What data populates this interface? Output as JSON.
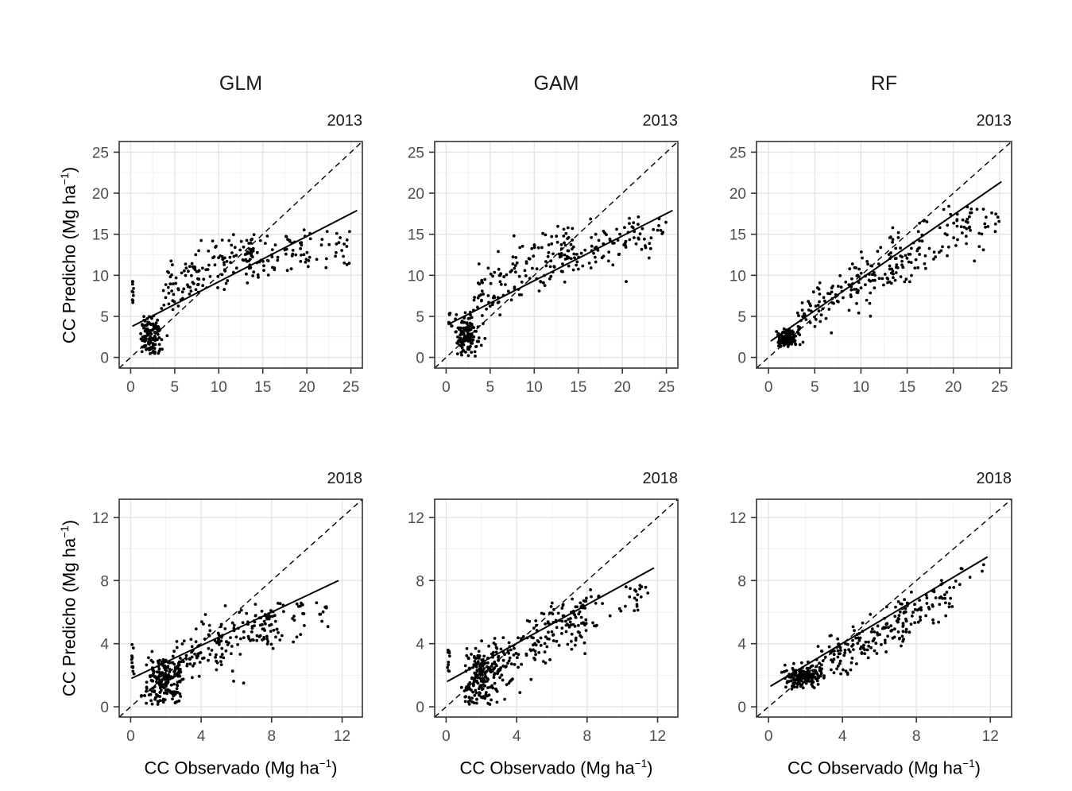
{
  "figure": {
    "column_titles": [
      "GLM",
      "GAM",
      "RF"
    ],
    "row_year_labels": [
      "2013",
      "2018"
    ],
    "x_label": {
      "pre": "CC Observado (Mg ha",
      "sup": "−1",
      "post": ")"
    },
    "y_label": {
      "pre": "CC Predicho (Mg ha",
      "sup": "−1",
      "post": ")"
    },
    "colors": {
      "text_tick": "#4d4d4d",
      "text_title": "#1a1a1a",
      "panel_border": "#333333",
      "grid_major": "#e3e3e3",
      "grid_minor": "#f1f1f1",
      "point": "#000000",
      "line": "#000000"
    }
  },
  "chart_data": {
    "type": "scatter",
    "title": "",
    "facet_columns": [
      "GLM",
      "GAM",
      "RF"
    ],
    "facet_rows": [
      "2013",
      "2018"
    ],
    "x_axis_label": "CC Observado (Mg ha−1)",
    "y_axis_label": "CC Predicho (Mg ha−1)",
    "grid": true,
    "legend": "none",
    "rows": [
      {
        "year": "2013",
        "ticks": [
          0,
          5,
          10,
          15,
          20,
          25
        ],
        "minor_ticks": [
          2.5,
          7.5,
          12.5,
          17.5,
          22.5
        ],
        "domain": [
          -1.3,
          26.3
        ]
      },
      {
        "year": "2018",
        "ticks": [
          0,
          4,
          8,
          12
        ],
        "minor_ticks": [
          2,
          6,
          10
        ],
        "domain": [
          -0.65,
          13.15
        ]
      }
    ],
    "panels": [
      {
        "model": "GLM",
        "year": "2013",
        "row": 0,
        "col": 0,
        "seed": 101,
        "identity_line": true,
        "regression": {
          "x": [
            0.2,
            25.7
          ],
          "y": [
            3.8,
            17.9
          ]
        },
        "point_groups": [
          {
            "n": 130,
            "x": {
              "dist": "norm",
              "mean": 2.2,
              "sd": 0.6,
              "clip": [
                1.1,
                4.2
              ]
            },
            "y": {
              "dist": "norm",
              "mean": 2.7,
              "sd": 1.3,
              "clip": [
                0.3,
                5.5
              ]
            }
          },
          {
            "n": 10,
            "x": {
              "dist": "norm",
              "mean": 0.25,
              "sd": 0.06,
              "clip": [
                0.15,
                0.45
              ]
            },
            "y": {
              "dist": "uniform",
              "min": 6.6,
              "max": 9.4
            }
          },
          {
            "n": 125,
            "x": {
              "dist": "uniform",
              "min": 3.5,
              "max": 14
            },
            "y": {
              "dist": "line",
              "a": 7.1,
              "b": 0.44,
              "sd": 1.7,
              "clip": [
                4.4,
                15.8
              ]
            }
          },
          {
            "n": 70,
            "x": {
              "dist": "uniform",
              "min": 13,
              "max": 20.5
            },
            "y": {
              "dist": "line",
              "a": 7.0,
              "b": 0.34,
              "sd": 1.5,
              "clip": [
                8,
                15.8
              ]
            }
          },
          {
            "n": 25,
            "x": {
              "dist": "uniform",
              "min": 20,
              "max": 25
            },
            "y": {
              "dist": "line",
              "a": 6.2,
              "b": 0.31,
              "sd": 1.8,
              "clip": [
                9,
                15.5
              ]
            }
          }
        ]
      },
      {
        "model": "GAM",
        "year": "2013",
        "row": 0,
        "col": 1,
        "seed": 202,
        "identity_line": true,
        "regression": {
          "x": [
            0.2,
            25.7
          ],
          "y": [
            4.0,
            17.9
          ]
        },
        "point_groups": [
          {
            "n": 135,
            "x": {
              "dist": "norm",
              "mean": 2.3,
              "sd": 0.7,
              "clip": [
                1.0,
                4.5
              ]
            },
            "y": {
              "dist": "norm",
              "mean": 2.5,
              "sd": 1.4,
              "clip": [
                0.1,
                5.6
              ]
            }
          },
          {
            "n": 8,
            "x": {
              "dist": "norm",
              "mean": 0.45,
              "sd": 0.15,
              "clip": [
                0.2,
                0.7
              ]
            },
            "y": {
              "dist": "uniform",
              "min": 3.8,
              "max": 5.6
            }
          },
          {
            "n": 130,
            "x": {
              "dist": "uniform",
              "min": 3,
              "max": 14
            },
            "y": {
              "dist": "line",
              "a": 5.6,
              "b": 0.55,
              "sd": 1.8,
              "clip": [
                1.6,
                16
              ]
            }
          },
          {
            "n": 80,
            "x": {
              "dist": "uniform",
              "min": 13,
              "max": 22
            },
            "y": {
              "dist": "line",
              "a": 6.4,
              "b": 0.43,
              "sd": 1.6,
              "clip": [
                8,
                17.2
              ]
            }
          },
          {
            "n": 20,
            "x": {
              "dist": "uniform",
              "min": 21,
              "max": 25
            },
            "y": {
              "dist": "line",
              "a": 6.0,
              "b": 0.38,
              "sd": 1.7,
              "clip": [
                10,
                17
              ]
            }
          }
        ]
      },
      {
        "model": "RF",
        "year": "2013",
        "row": 0,
        "col": 2,
        "seed": 303,
        "identity_line": true,
        "regression": {
          "x": [
            0.25,
            25.2
          ],
          "y": [
            2.0,
            21.4
          ]
        },
        "point_groups": [
          {
            "n": 150,
            "x": {
              "dist": "norm",
              "mean": 2.1,
              "sd": 0.55,
              "clip": [
                0.8,
                4.2
              ]
            },
            "y": {
              "dist": "norm",
              "mean": 2.3,
              "sd": 0.5,
              "clip": [
                1.2,
                4.2
              ]
            }
          },
          {
            "n": 130,
            "x": {
              "dist": "uniform",
              "min": 3,
              "max": 14
            },
            "y": {
              "dist": "line",
              "a": 1.6,
              "b": 0.78,
              "sd": 1.5,
              "clip": [
                1.5,
                16
              ]
            }
          },
          {
            "n": 90,
            "x": {
              "dist": "uniform",
              "min": 13,
              "max": 22
            },
            "y": {
              "dist": "line",
              "a": 2.6,
              "b": 0.65,
              "sd": 1.7,
              "clip": [
                9,
                18.6
              ]
            }
          },
          {
            "n": 20,
            "x": {
              "dist": "uniform",
              "min": 21,
              "max": 25
            },
            "y": {
              "dist": "line",
              "a": 3.2,
              "b": 0.55,
              "sd": 1.8,
              "clip": [
                11,
                18.5
              ]
            }
          }
        ]
      },
      {
        "model": "GLM",
        "year": "2018",
        "row": 1,
        "col": 0,
        "seed": 404,
        "identity_line": true,
        "regression": {
          "x": [
            0.05,
            11.8
          ],
          "y": [
            1.8,
            8.0
          ]
        },
        "point_groups": [
          {
            "n": 150,
            "x": {
              "dist": "norm",
              "mean": 1.9,
              "sd": 0.5,
              "clip": [
                0.8,
                3.5
              ]
            },
            "y": {
              "dist": "norm",
              "mean": 1.9,
              "sd": 0.7,
              "clip": [
                0.3,
                3.6
              ]
            }
          },
          {
            "n": 12,
            "x": {
              "dist": "norm",
              "mean": 0.12,
              "sd": 0.04,
              "clip": [
                0.05,
                0.22
              ]
            },
            "y": {
              "dist": "uniform",
              "min": 1.9,
              "max": 4.1
            }
          },
          {
            "n": 40,
            "x": {
              "dist": "uniform",
              "min": 0.6,
              "max": 2.8
            },
            "y": {
              "dist": "uniform",
              "min": 0.15,
              "max": 1.2
            }
          },
          {
            "n": 160,
            "x": {
              "dist": "uniform",
              "min": 2.5,
              "max": 8
            },
            "y": {
              "dist": "line",
              "a": 1.4,
              "b": 0.52,
              "sd": 0.95,
              "clip": [
                0.4,
                6.6
              ]
            }
          },
          {
            "n": 45,
            "x": {
              "dist": "uniform",
              "min": 7.5,
              "max": 11.2
            },
            "y": {
              "dist": "line",
              "a": 1.8,
              "b": 0.42,
              "sd": 0.9,
              "clip": [
                3,
                6.6
              ]
            }
          }
        ]
      },
      {
        "model": "GAM",
        "year": "2018",
        "row": 1,
        "col": 1,
        "seed": 505,
        "identity_line": true,
        "regression": {
          "x": [
            0.05,
            11.8
          ],
          "y": [
            1.6,
            8.8
          ]
        },
        "point_groups": [
          {
            "n": 150,
            "x": {
              "dist": "norm",
              "mean": 2.0,
              "sd": 0.55,
              "clip": [
                0.8,
                3.6
              ]
            },
            "y": {
              "dist": "norm",
              "mean": 2.2,
              "sd": 0.8,
              "clip": [
                0.4,
                4.2
              ]
            }
          },
          {
            "n": 10,
            "x": {
              "dist": "norm",
              "mean": 0.15,
              "sd": 0.05,
              "clip": [
                0.05,
                0.25
              ]
            },
            "y": {
              "dist": "uniform",
              "min": 2.0,
              "max": 3.8
            }
          },
          {
            "n": 35,
            "x": {
              "dist": "uniform",
              "min": 0.8,
              "max": 3
            },
            "y": {
              "dist": "uniform",
              "min": 0.1,
              "max": 1.3
            }
          },
          {
            "n": 160,
            "x": {
              "dist": "uniform",
              "min": 2.5,
              "max": 8
            },
            "y": {
              "dist": "line",
              "a": 1.2,
              "b": 0.6,
              "sd": 0.95,
              "clip": [
                0.3,
                7.2
              ]
            }
          },
          {
            "n": 45,
            "x": {
              "dist": "uniform",
              "min": 7.5,
              "max": 11.5
            },
            "y": {
              "dist": "line",
              "a": 1.6,
              "b": 0.52,
              "sd": 0.95,
              "clip": [
                3.5,
                7.8
              ]
            }
          }
        ]
      },
      {
        "model": "RF",
        "year": "2018",
        "row": 1,
        "col": 2,
        "seed": 606,
        "identity_line": true,
        "regression": {
          "x": [
            0.1,
            11.85
          ],
          "y": [
            1.3,
            9.5
          ]
        },
        "point_groups": [
          {
            "n": 170,
            "x": {
              "dist": "norm",
              "mean": 1.9,
              "sd": 0.5,
              "clip": [
                0.7,
                3.4
              ]
            },
            "y": {
              "dist": "norm",
              "mean": 1.9,
              "sd": 0.35,
              "clip": [
                1.1,
                3.0
              ]
            }
          },
          {
            "n": 150,
            "x": {
              "dist": "uniform",
              "min": 2.5,
              "max": 7.5
            },
            "y": {
              "dist": "line",
              "a": 0.9,
              "b": 0.62,
              "sd": 0.7,
              "clip": [
                0.8,
                6.8
              ]
            }
          },
          {
            "n": 60,
            "x": {
              "dist": "uniform",
              "min": 7,
              "max": 9.8
            },
            "y": {
              "dist": "line",
              "a": 1.0,
              "b": 0.62,
              "sd": 0.7,
              "clip": [
                4,
                8.2
              ]
            }
          },
          {
            "n": 12,
            "x": {
              "dist": "uniform",
              "min": 9,
              "max": 11.8
            },
            "y": {
              "dist": "line",
              "a": 0.8,
              "b": 0.68,
              "sd": 0.6,
              "clip": [
                6,
                9.4
              ]
            }
          }
        ]
      }
    ]
  }
}
